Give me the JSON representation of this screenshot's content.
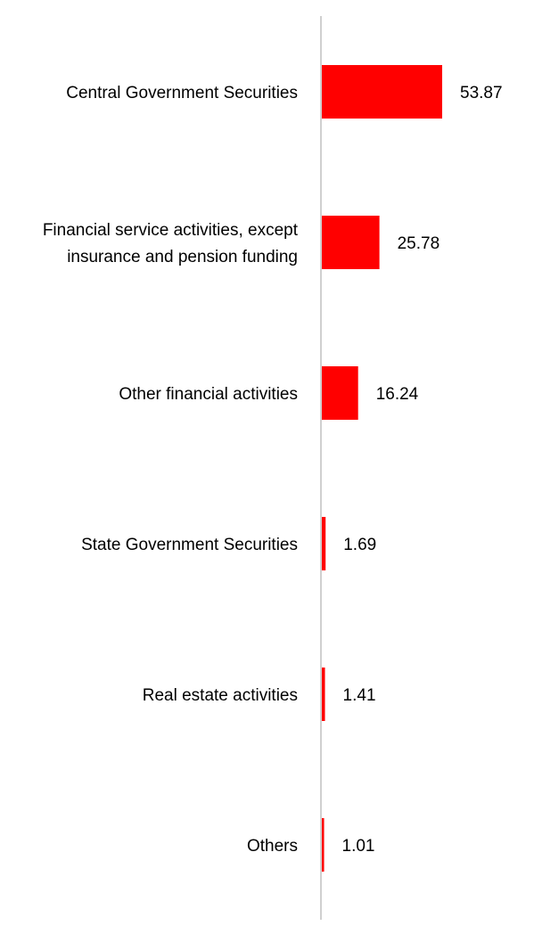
{
  "chart_data": {
    "type": "bar",
    "orientation": "horizontal",
    "categories": [
      [
        "Central Government Securities"
      ],
      [
        "Financial service activities, except",
        "insurance and pension funding"
      ],
      [
        "Other financial activities"
      ],
      [
        "State Government Securities"
      ],
      [
        "Real estate activities"
      ],
      [
        "Others"
      ]
    ],
    "values": [
      53.87,
      25.78,
      16.24,
      1.69,
      1.41,
      1.01
    ],
    "value_labels": [
      "53.87",
      "25.78",
      "16.24",
      "1.69",
      "1.41",
      "1.01"
    ],
    "title": "",
    "xlabel": "",
    "ylabel": "",
    "xlim": [
      0,
      53.87
    ],
    "grid": false,
    "legend": "none",
    "bar_color": "#ff0000",
    "axis_color": "#d0d0d0"
  }
}
